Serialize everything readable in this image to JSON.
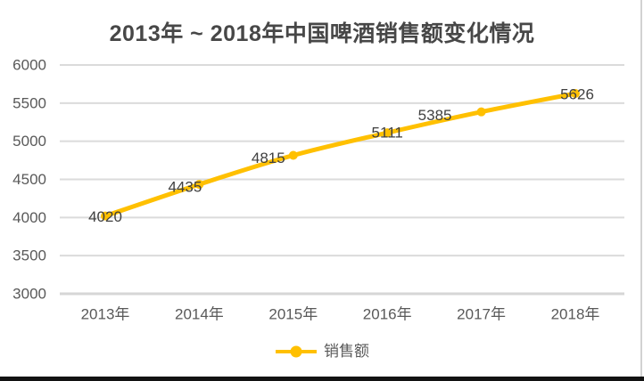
{
  "title": "2013年 ~ 2018年中国啤酒销售额变化情况",
  "legend": {
    "label": "销售额"
  },
  "colors": {
    "series": "#FFC000",
    "grid": "#DBDBDB",
    "axis_line": "#D6D6D6",
    "axis_text": "#595959",
    "data_label_text": "#404040"
  },
  "chart_data": {
    "type": "line",
    "title": "2013年 ~ 2018年中国啤酒销售额变化情况",
    "categories": [
      "2013年",
      "2014年",
      "2015年",
      "2016年",
      "2017年",
      "2018年"
    ],
    "series": [
      {
        "name": "销售额",
        "values": [
          4020,
          4435,
          4815,
          5111,
          5385,
          5626
        ]
      }
    ],
    "data_labels": [
      4020,
      4435,
      4815,
      5111,
      5385,
      5626
    ],
    "xlabel": "",
    "ylabel": "",
    "ylim": [
      3000,
      6000
    ],
    "yticks": [
      3000,
      3500,
      4000,
      4500,
      5000,
      5500,
      6000
    ],
    "grid": true,
    "smooth": true,
    "legend_position": "bottom"
  }
}
